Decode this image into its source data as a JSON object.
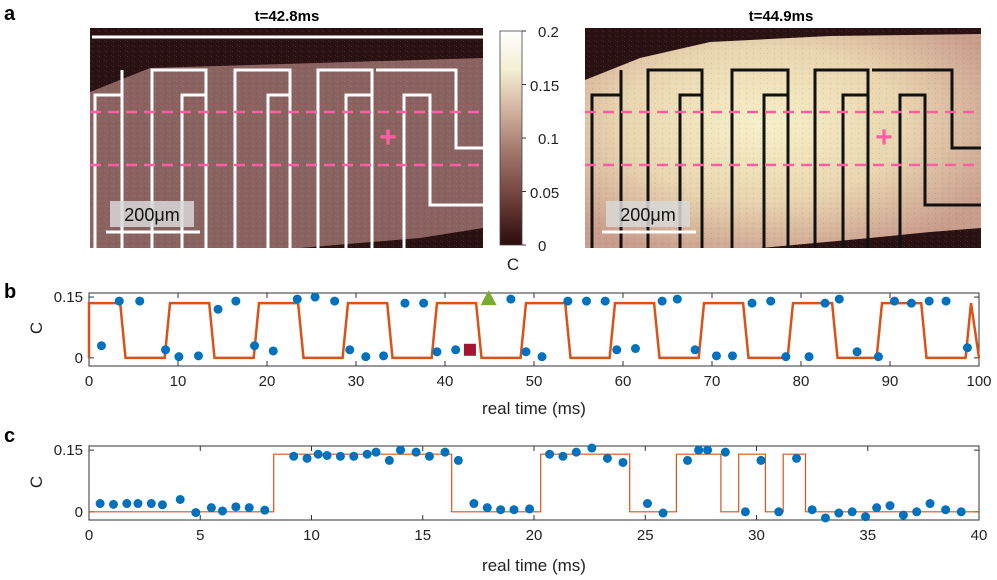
{
  "panel_labels": [
    "a",
    "b",
    "c"
  ],
  "images": [
    {
      "title": "t=42.8ms",
      "scalebar": "200μm",
      "marker": "+"
    },
    {
      "title": "t=44.9ms",
      "scalebar": "200μm",
      "marker": "+"
    }
  ],
  "colors": {
    "fit_line": "#d95319",
    "points": "#0072bd",
    "triangle": "#77ac30",
    "square": "#a2142f",
    "guide_lines": "#ff5fa2"
  },
  "chart_data": [
    {
      "type": "heatmap",
      "role": "colorbar",
      "label": "C",
      "range": [
        0,
        0.2
      ],
      "ticks": [
        "0",
        "0.05",
        "0.1",
        "0.15",
        "0.2"
      ],
      "colormap": [
        "#2b0d0d",
        "#6a3b35",
        "#a57b70",
        "#d6b9a5",
        "#f3efd2",
        "#ffffff"
      ]
    },
    {
      "type": "scatter",
      "panel": "b",
      "xlabel": "real time (ms)",
      "ylabel": "C",
      "xlim": [
        0,
        100
      ],
      "ylim": [
        -0.02,
        0.16
      ],
      "xticks": [
        0,
        10,
        20,
        30,
        40,
        50,
        60,
        70,
        80,
        90,
        100
      ],
      "yticks": [
        0,
        0.15
      ],
      "ytick_labels": [
        "0",
        "0.15"
      ],
      "series": [
        {
          "kind": "points",
          "x": [
            1.4,
            3.4,
            5.7,
            8.6,
            10.1,
            12.3,
            14.5,
            16.5,
            18.6,
            20.7,
            23.4,
            25.4,
            27.6,
            29.3,
            31.1,
            33.1,
            35.5,
            37.6,
            39.1,
            41.2,
            47.4,
            49.1,
            50.9,
            53.8,
            55.9,
            58.0,
            59.3,
            61.4,
            64.4,
            66.1,
            68.1,
            70.5,
            72.3,
            74.5,
            76.6,
            78.3,
            80.9,
            82.7,
            84.3,
            86.3,
            88.7,
            90.5,
            92.4,
            94.4,
            96.3,
            98.7
          ],
          "y": [
            0.03,
            0.14,
            0.14,
            0.02,
            0.003,
            0.005,
            0.12,
            0.14,
            0.03,
            0.017,
            0.145,
            0.15,
            0.14,
            0.02,
            0.003,
            0.005,
            0.135,
            0.135,
            0.015,
            0.02,
            0.145,
            0.015,
            0.003,
            0.14,
            0.14,
            0.14,
            0.02,
            0.023,
            0.14,
            0.145,
            0.02,
            0.005,
            0.005,
            0.135,
            0.14,
            0.003,
            0.003,
            0.135,
            0.145,
            0.015,
            0.003,
            0.14,
            0.135,
            0.14,
            0.14,
            0.025
          ]
        },
        {
          "kind": "fit",
          "period": 10,
          "cycle_start": 8.5,
          "high_duration": 5,
          "rise": 0.6,
          "high": 0.135,
          "low": 0,
          "x_start": 0,
          "x_end": 100
        },
        {
          "kind": "marker-square",
          "x": [
            42.8
          ],
          "y": [
            0.02
          ]
        },
        {
          "kind": "marker-triangle",
          "x": [
            44.9
          ],
          "y": [
            0.145
          ]
        }
      ]
    },
    {
      "type": "scatter",
      "panel": "c",
      "xlabel": "real time (ms)",
      "ylabel": "C",
      "xlim": [
        0,
        40
      ],
      "ylim": [
        -0.02,
        0.16
      ],
      "xticks": [
        0,
        5,
        10,
        15,
        20,
        25,
        30,
        35,
        40
      ],
      "yticks": [
        0,
        0.15
      ],
      "ytick_labels": [
        "0",
        "0.15"
      ],
      "series": [
        {
          "kind": "points",
          "x": [
            0.5,
            1.1,
            1.7,
            2.2,
            2.8,
            3.3,
            4.1,
            4.8,
            5.5,
            6.0,
            6.6,
            7.2,
            7.9,
            9.2,
            9.8,
            10.3,
            10.7,
            11.3,
            11.9,
            12.5,
            12.9,
            13.5,
            14.0,
            14.7,
            15.3,
            16.0,
            16.6,
            17.3,
            17.9,
            18.5,
            19.1,
            19.8,
            20.7,
            21.3,
            21.9,
            22.6,
            23.3,
            24.0,
            25.1,
            25.8,
            26.9,
            27.4,
            27.8,
            28.6,
            29.5,
            30.2,
            31.0,
            31.8,
            32.5,
            33.1,
            33.7,
            34.3,
            34.9,
            35.4,
            36.0,
            36.6,
            37.2,
            37.8,
            38.5,
            39.2
          ],
          "y": [
            0.02,
            0.018,
            0.02,
            0.02,
            0.02,
            0.017,
            0.03,
            -0.002,
            0.01,
            0.002,
            0.012,
            0.01,
            0.004,
            0.135,
            0.13,
            0.14,
            0.137,
            0.135,
            0.135,
            0.14,
            0.145,
            0.125,
            0.15,
            0.145,
            0.135,
            0.145,
            0.125,
            0.02,
            0.01,
            0.005,
            0.005,
            0.007,
            0.14,
            0.135,
            0.145,
            0.155,
            0.13,
            0.12,
            0.02,
            -0.003,
            0.125,
            0.15,
            0.15,
            0.145,
            0.0,
            0.125,
            0.0,
            0.13,
            0.005,
            -0.015,
            -0.003,
            0.0,
            -0.012,
            0.01,
            0.015,
            -0.008,
            0.0,
            0.02,
            0.005,
            0.0
          ]
        },
        {
          "kind": "fit",
          "x": [
            0,
            8.3,
            8.3,
            16.3,
            16.3,
            20.3,
            20.3,
            24.3,
            24.3,
            26.4,
            26.4,
            28.4,
            28.4,
            29.2,
            29.2,
            30.4,
            30.4,
            31.2,
            31.2,
            32.2,
            32.2,
            40
          ],
          "y": [
            0,
            0,
            0.14,
            0.14,
            0,
            0,
            0.14,
            0.14,
            0,
            0,
            0.14,
            0.14,
            0,
            0,
            0.14,
            0.14,
            0,
            0,
            0.14,
            0.14,
            0,
            0
          ]
        }
      ]
    }
  ]
}
